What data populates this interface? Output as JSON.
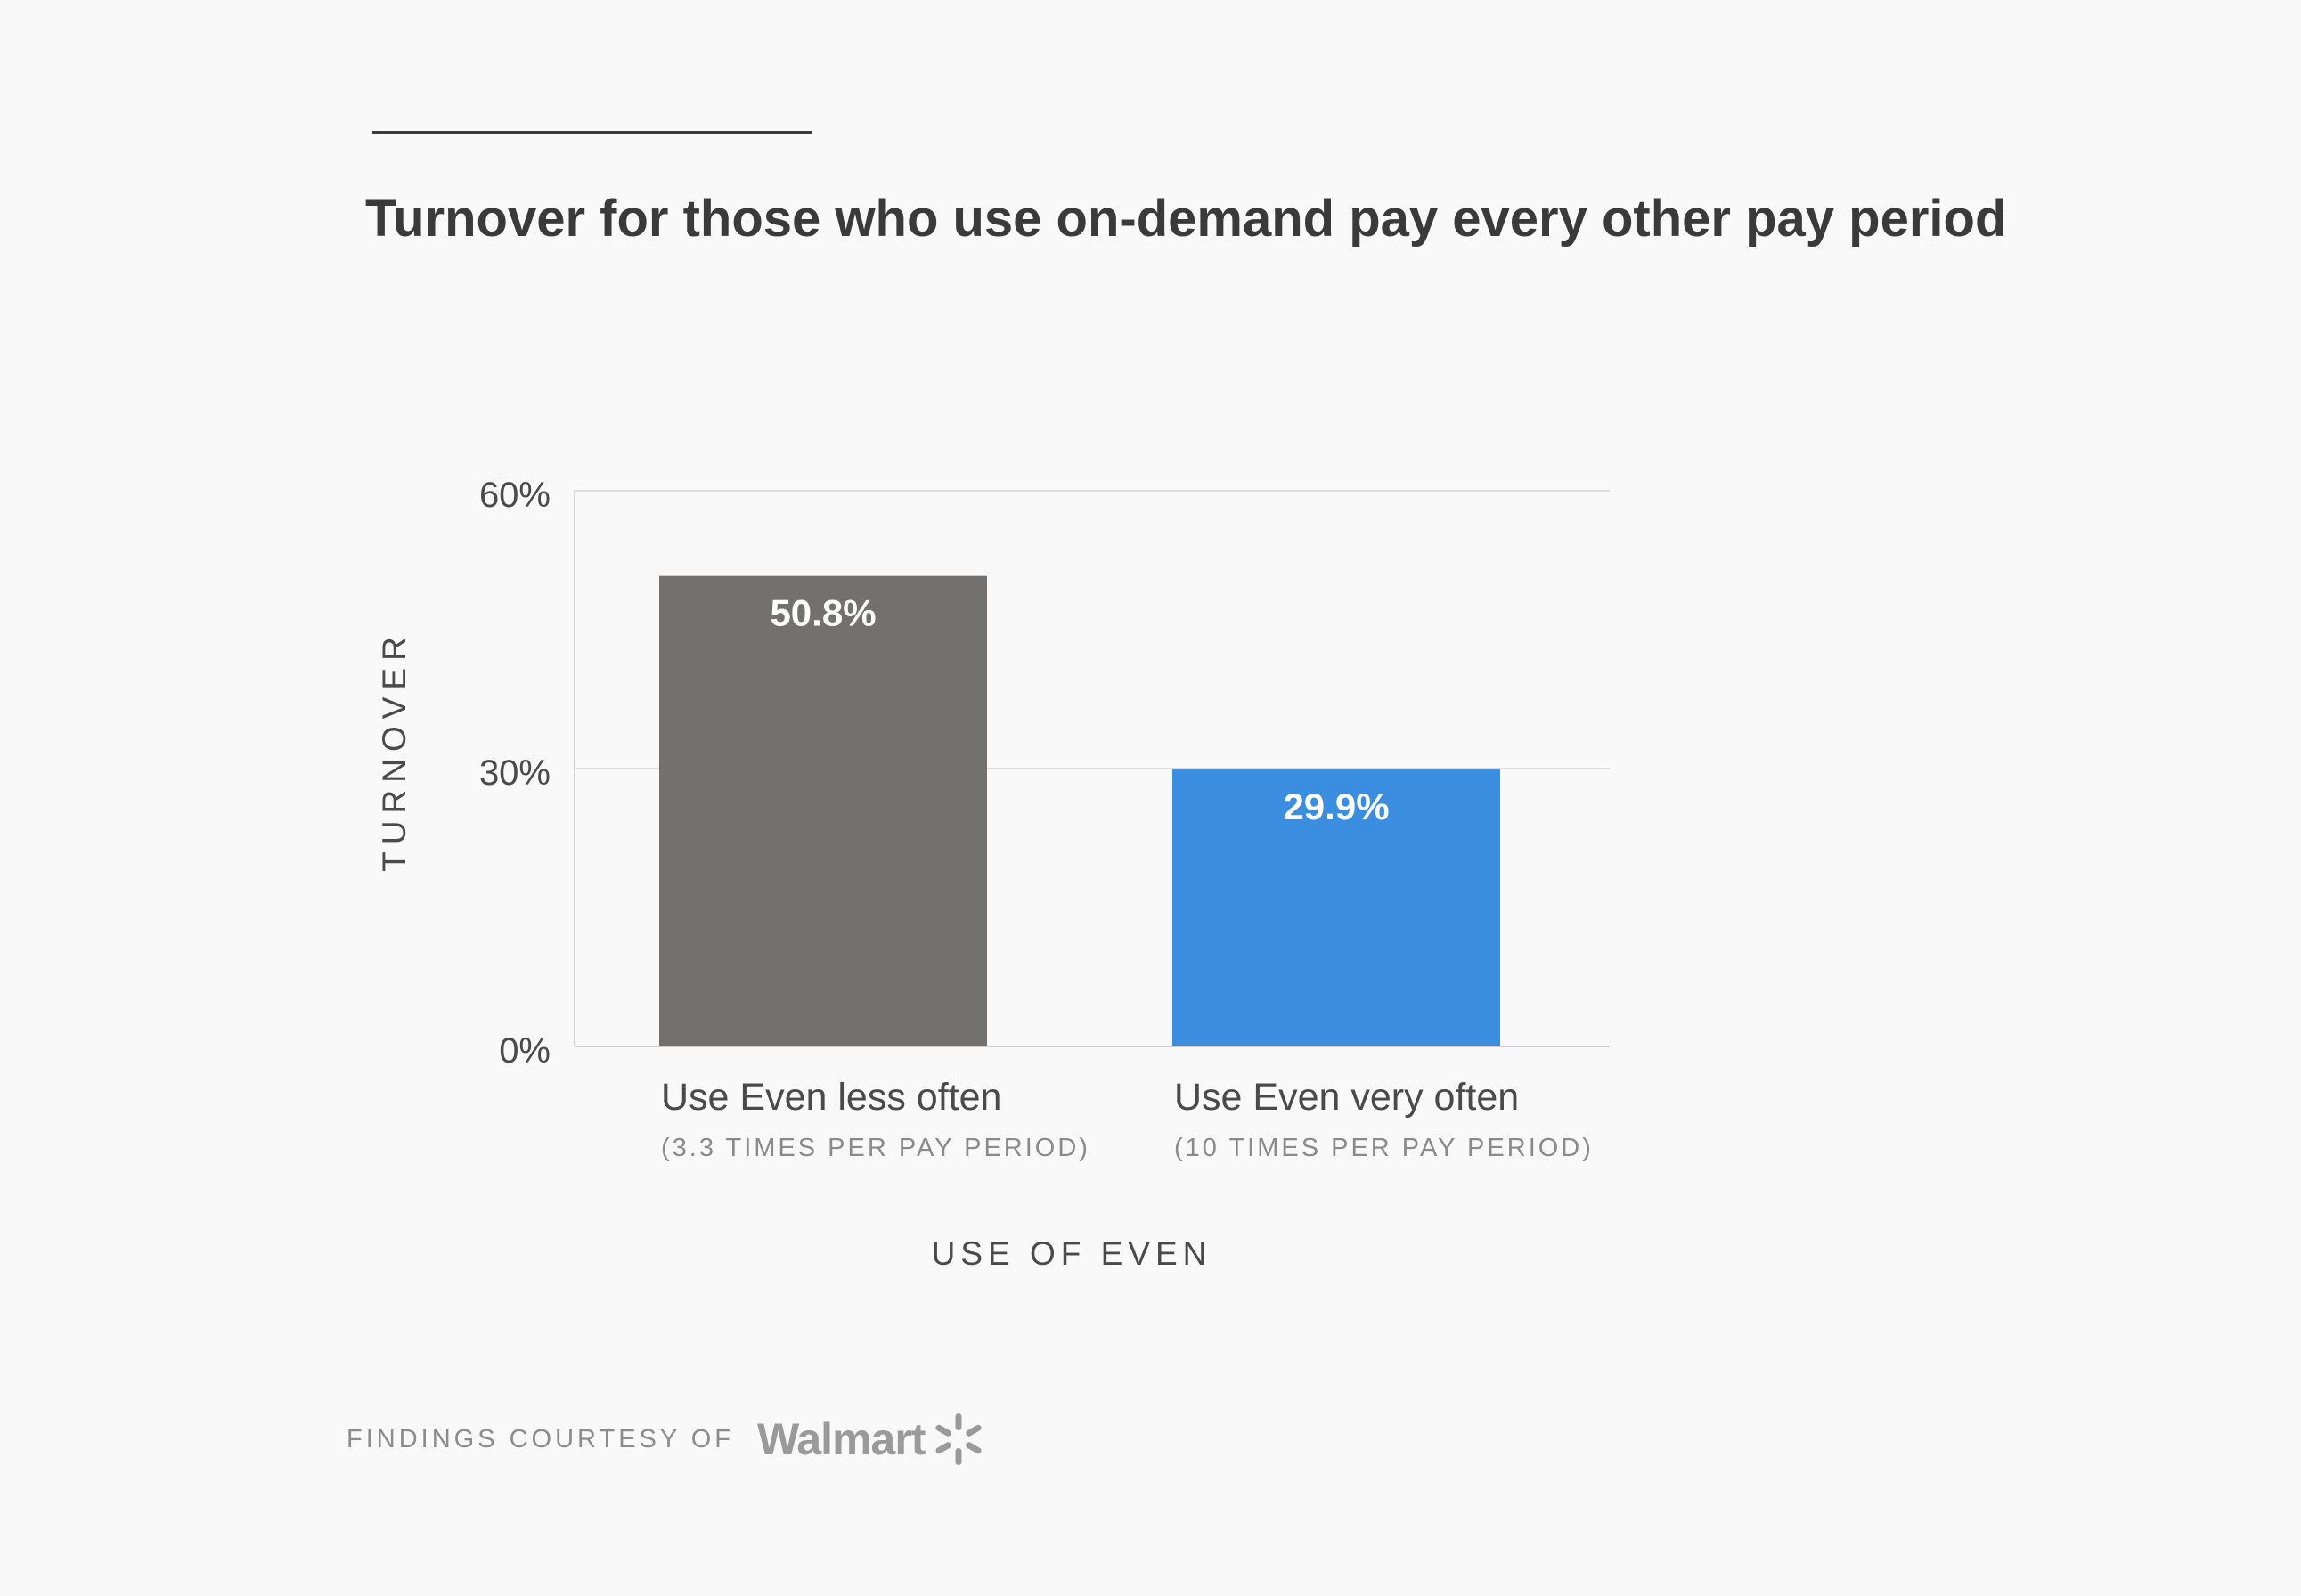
{
  "chart_data": {
    "type": "bar",
    "title": "Turnover for those who use on-demand pay every other pay period",
    "categories": [
      "Use Even less often",
      "Use Even very often"
    ],
    "category_sublabels": [
      "(3.3 TIMES PER PAY PERIOD)",
      "(10 TIMES PER PAY PERIOD)"
    ],
    "values": [
      50.8,
      29.9
    ],
    "data_labels": [
      "50.8%",
      "29.9%"
    ],
    "colors": [
      "#72716f",
      "#3b8de0"
    ],
    "xlabel": "USE OF EVEN",
    "ylabel": "TURNOVER",
    "ylim": [
      0,
      60
    ],
    "yticks": [
      0,
      30,
      60
    ],
    "ytick_labels": [
      "0%",
      "30%",
      "60%"
    ],
    "grid": true
  },
  "footer": {
    "credit": "FINDINGS COURTESY OF",
    "brand": "Walmart",
    "brand_icon": "walmart-spark-icon"
  }
}
